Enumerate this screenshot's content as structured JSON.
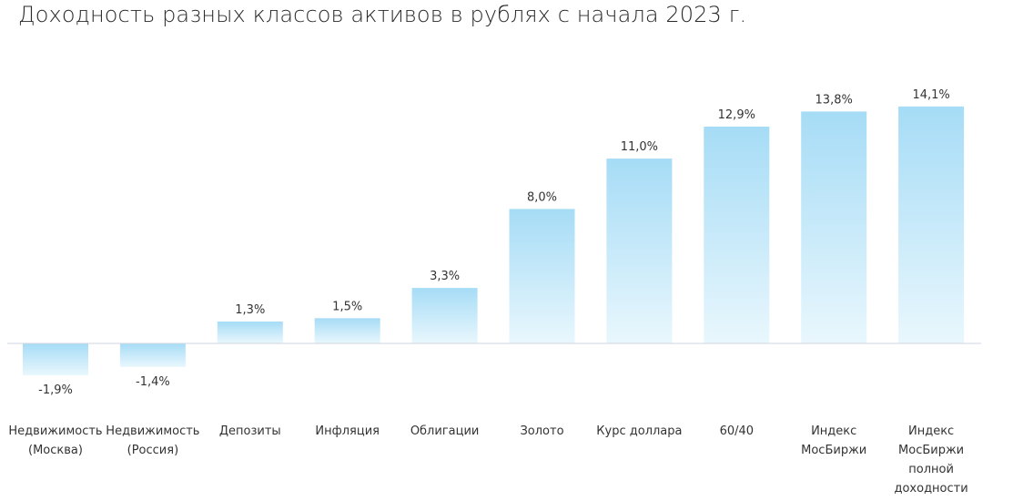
{
  "chart_data": {
    "type": "bar",
    "title": "Доходность разных классов активов в рублях с начала 2023 г.",
    "categories": [
      "Недвижимость (Москва)",
      "Недвижимость (Россия)",
      "Депозиты",
      "Инфляция",
      "Облигации",
      "Золото",
      "Курс доллара",
      "60/40",
      "Индекс МосБиржи",
      "Индекс МосБиржи полной доходности"
    ],
    "category_lines": [
      [
        "Недвижимость",
        "(Москва)"
      ],
      [
        "Недвижимость",
        "(Россия)"
      ],
      [
        "Депозиты"
      ],
      [
        "Инфляция"
      ],
      [
        "Облигации"
      ],
      [
        "Золото"
      ],
      [
        "Курс доллара"
      ],
      [
        "60/40"
      ],
      [
        "Индекс",
        "МосБиржи"
      ],
      [
        "Индекс",
        "МосБиржи",
        "полной",
        "доходности"
      ]
    ],
    "values": [
      -1.9,
      -1.4,
      1.3,
      1.5,
      3.3,
      8.0,
      11.0,
      12.9,
      13.8,
      14.1
    ],
    "value_labels": [
      "-1,9%",
      "-1,4%",
      "1,3%",
      "1,5%",
      "3,3%",
      "8,0%",
      "11,0%",
      "12,9%",
      "13,8%",
      "14,1%"
    ],
    "unit": "%",
    "ylim": [
      -2.5,
      16
    ],
    "grid": false,
    "legend": "none",
    "colors": {
      "bar_top": "#a6dcf6",
      "bar_bottom": "#e9f7fd",
      "baseline": "#cfd6dc",
      "text": "#333333"
    }
  }
}
